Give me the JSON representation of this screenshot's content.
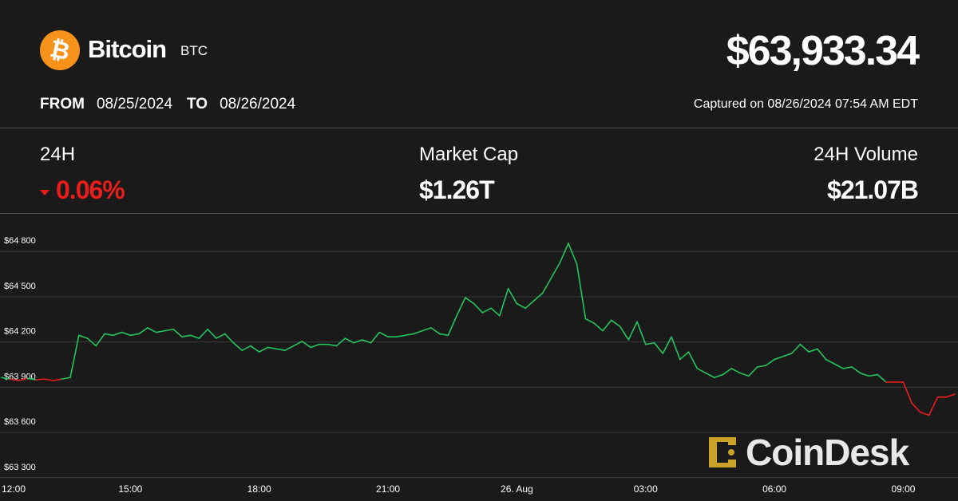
{
  "header": {
    "coin_name": "Bitcoin",
    "ticker": "BTC",
    "price": "$63,933.34",
    "from_label": "FROM",
    "from_date": "08/25/2024",
    "to_label": "TO",
    "to_date": "08/26/2024",
    "captured": "Captured on 08/26/2024 07:54 AM EDT"
  },
  "stats": {
    "change_label": "24H",
    "change_value": "0.06%",
    "change_direction": "down",
    "market_cap_label": "Market Cap",
    "market_cap_value": "$1.26T",
    "volume_label": "24H Volume",
    "volume_value": "$21.07B"
  },
  "colors": {
    "background": "#1a1a1a",
    "up": "#22c55e",
    "down": "#ea1d1d",
    "brand_orange": "#f7931a",
    "watermark_gold": "#c9a227"
  },
  "watermark": {
    "text": "CoinDesk",
    "icon": "coindesk-logo-icon"
  },
  "chart_data": {
    "type": "line",
    "title": "",
    "xlabel": "",
    "ylabel": "",
    "x_ticks": [
      "12:00",
      "15:00",
      "18:00",
      "21:00",
      "26. Aug",
      "03:00",
      "06:00",
      "09:00"
    ],
    "y_ticks": [
      "$63 300",
      "$63 600",
      "$63 900",
      "$64 200",
      "$64 500",
      "$64 800"
    ],
    "ylim": [
      63230,
      64870
    ],
    "xlim_hours": [
      0,
      22.2
    ],
    "baseline": 63880,
    "grid": "horizontal",
    "legend": "none",
    "series": [
      {
        "x": [
          0,
          0.2,
          0.4,
          0.6,
          0.8,
          1.0,
          1.2,
          1.4,
          1.6,
          1.8,
          2.0,
          2.2,
          2.4,
          2.6,
          2.8,
          3.0,
          3.2,
          3.4,
          3.6,
          3.8,
          4.0,
          4.2,
          4.4,
          4.6,
          4.8,
          5.0,
          5.2,
          5.4,
          5.6,
          5.8,
          6.0,
          6.2,
          6.4,
          6.6,
          6.8,
          7.0,
          7.2,
          7.4,
          7.6,
          7.8,
          8.0,
          8.2,
          8.4,
          8.6,
          8.8,
          9.0,
          9.2,
          9.4,
          9.6,
          9.8,
          10.0,
          10.2,
          10.4,
          10.6,
          10.8,
          11.0,
          11.2,
          11.4,
          11.6,
          11.8,
          12.0,
          12.2,
          12.4,
          12.6,
          12.8,
          13.0,
          13.2,
          13.4,
          13.6,
          13.8,
          14.0,
          14.2,
          14.4,
          14.6,
          14.8,
          15.0,
          15.2,
          15.4,
          15.6,
          15.8,
          16.0,
          16.2,
          16.4,
          16.6,
          16.8,
          17.0,
          17.2,
          17.4,
          17.6,
          17.8,
          18.0,
          18.2,
          18.4,
          18.6,
          18.8,
          19.0,
          19.2,
          19.4,
          19.6,
          19.8,
          20.0,
          20.2,
          20.4,
          20.6,
          20.8,
          21.0,
          21.2,
          21.4,
          21.6,
          21.8,
          22.0,
          22.2
        ],
        "y": [
          63890,
          63880,
          63870,
          63885,
          63875,
          63880,
          63870,
          63880,
          63890,
          64170,
          64150,
          64100,
          64180,
          64170,
          64190,
          64170,
          64180,
          64220,
          64190,
          64200,
          64210,
          64160,
          64170,
          64150,
          64210,
          64150,
          64180,
          64120,
          64070,
          64100,
          64060,
          64090,
          64080,
          64070,
          64100,
          64130,
          64090,
          64110,
          64110,
          64100,
          64150,
          64120,
          64140,
          64120,
          64190,
          64160,
          64160,
          64170,
          64180,
          64200,
          64220,
          64180,
          64170,
          64300,
          64420,
          64380,
          64320,
          64350,
          64300,
          64480,
          64380,
          64350,
          64400,
          64450,
          64550,
          64650,
          64780,
          64640,
          64280,
          64250,
          64200,
          64270,
          64230,
          64140,
          64260,
          64110,
          64120,
          64050,
          64160,
          64010,
          64060,
          63950,
          63920,
          63890,
          63910,
          63950,
          63920,
          63900,
          63960,
          63970,
          64010,
          64030,
          64050,
          64110,
          64060,
          64080,
          64010,
          63980,
          63950,
          63960,
          63920,
          63900,
          63910,
          63860,
          63860,
          63860,
          63720,
          63660,
          63640,
          63760,
          63760,
          63780
        ]
      }
    ]
  }
}
